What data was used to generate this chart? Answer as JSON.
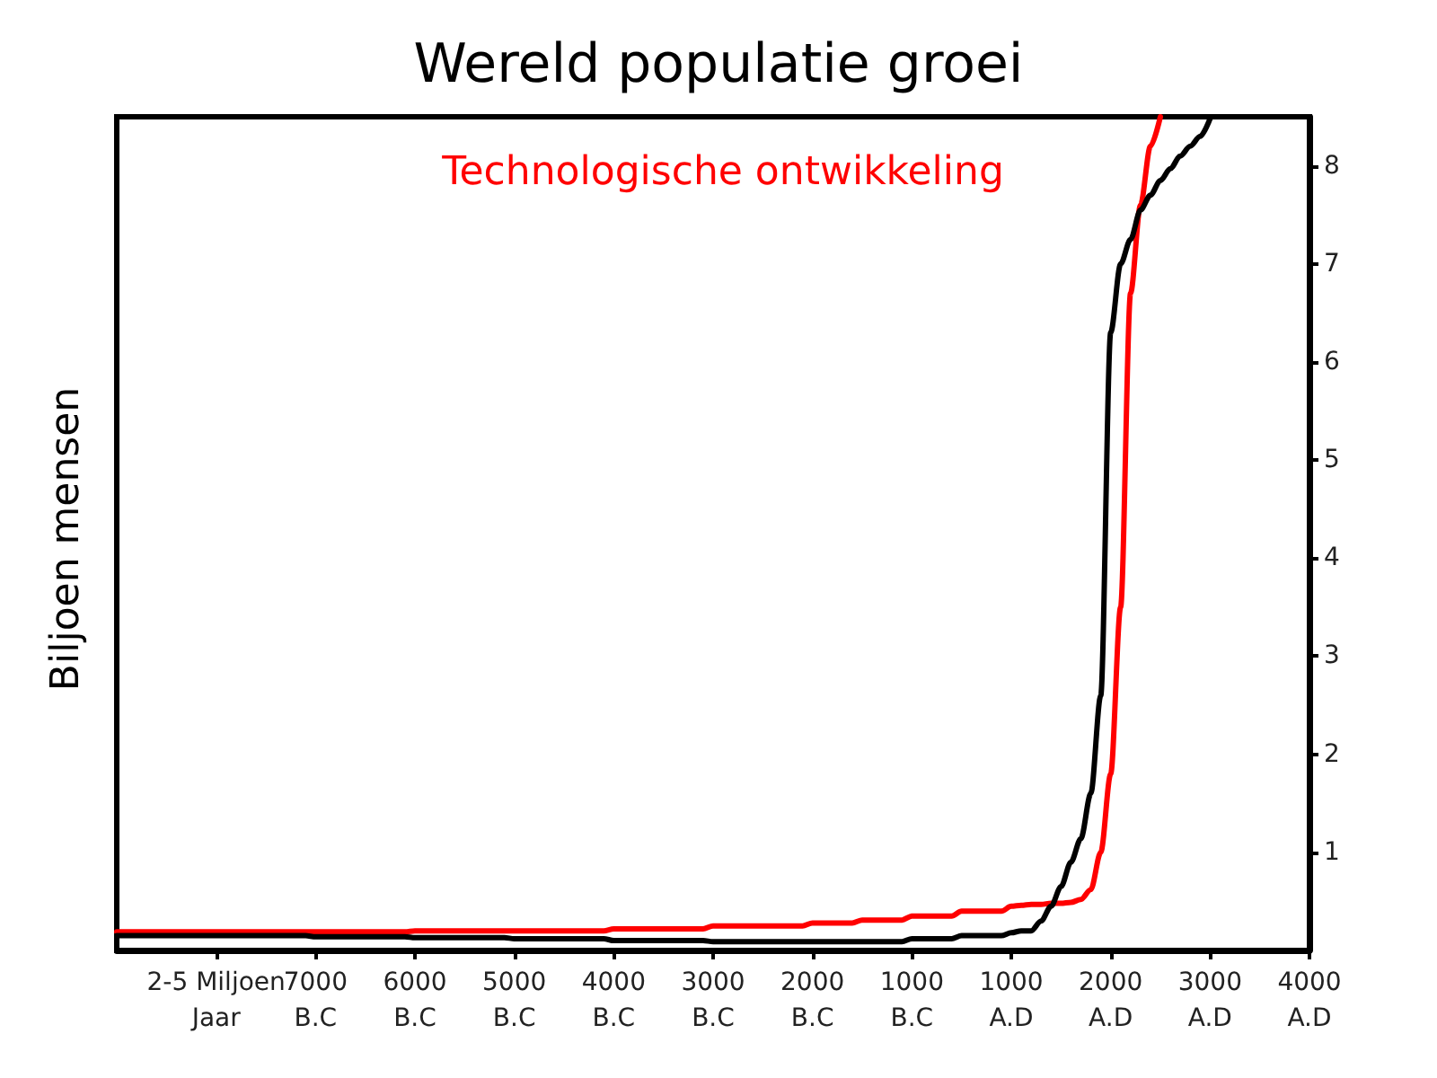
{
  "chart_data": {
    "type": "line",
    "title": "Wereld populatie groei",
    "ylabel": "Biljoen mensen",
    "ylim": [
      0,
      8.5
    ],
    "categories": [
      null,
      null,
      null,
      null,
      null,
      null,
      null,
      null,
      null,
      null,
      "2-5 Miljoen\nJaar",
      null,
      null,
      null,
      null,
      null,
      null,
      null,
      null,
      null,
      "7000\nB.C",
      null,
      null,
      null,
      null,
      null,
      null,
      null,
      null,
      null,
      "6000\nB.C",
      null,
      null,
      null,
      null,
      null,
      null,
      null,
      null,
      null,
      "5000\nB.C",
      null,
      null,
      null,
      null,
      null,
      null,
      null,
      null,
      null,
      "4000\nB.C",
      null,
      null,
      null,
      null,
      null,
      null,
      null,
      null,
      null,
      "3000\nB.C",
      null,
      null,
      null,
      null,
      null,
      null,
      null,
      null,
      null,
      "2000\nB.C",
      null,
      null,
      null,
      null,
      null,
      null,
      null,
      null,
      null,
      "1000\nB.C",
      null,
      null,
      null,
      null,
      null,
      null,
      null,
      null,
      null,
      "1000\nA.D",
      null,
      null,
      null,
      null,
      null,
      null,
      null,
      null,
      null,
      "2000\nA.D",
      null,
      null,
      null,
      null,
      null,
      null,
      null,
      null,
      null,
      "3000\nA.D",
      null,
      null,
      null,
      null,
      null,
      null,
      null,
      null,
      null,
      "4000\nA.D"
    ],
    "yticks": [
      1,
      2,
      3,
      4,
      5,
      6,
      7,
      8
    ],
    "grid": false,
    "legend": "top",
    "marker": "none",
    "line_style": "solid",
    "series": [
      {
        "name": "Technologische ontwikkeling",
        "color": "#ff0000",
        "values": [
          0.19,
          0.19,
          0.19,
          0.19,
          0.19,
          0.19,
          0.19,
          0.19,
          0.19,
          0.19,
          0.19,
          0.19,
          0.19,
          0.19,
          0.19,
          0.19,
          0.19,
          0.19,
          0.19,
          0.19,
          0.19,
          0.19,
          0.19,
          0.19,
          0.19,
          0.19,
          0.19,
          0.19,
          0.19,
          0.19,
          0.2,
          0.2,
          0.2,
          0.2,
          0.2,
          0.2,
          0.2,
          0.2,
          0.2,
          0.2,
          0.2,
          0.2,
          0.2,
          0.2,
          0.2,
          0.2,
          0.2,
          0.2,
          0.2,
          0.2,
          0.22,
          0.22,
          0.22,
          0.22,
          0.22,
          0.22,
          0.22,
          0.22,
          0.22,
          0.22,
          0.25,
          0.25,
          0.25,
          0.25,
          0.25,
          0.25,
          0.25,
          0.25,
          0.25,
          0.25,
          0.28,
          0.28,
          0.28,
          0.28,
          0.28,
          0.31,
          0.31,
          0.31,
          0.31,
          0.31,
          0.35,
          0.35,
          0.35,
          0.35,
          0.35,
          0.4,
          0.4,
          0.4,
          0.4,
          0.4,
          0.45,
          0.46,
          0.47,
          0.47,
          0.48,
          0.48,
          0.49,
          0.52,
          0.62,
          1.0,
          1.8,
          3.5,
          6.7,
          7.6,
          8.2,
          8.5,
          null,
          null,
          null,
          null,
          null,
          null,
          null,
          null,
          null,
          null,
          null,
          null,
          null,
          null,
          null
        ]
      },
      {
        "color": "#000000",
        "values": [
          0.15,
          0.15,
          0.15,
          0.15,
          0.15,
          0.15,
          0.15,
          0.15,
          0.15,
          0.15,
          0.15,
          0.15,
          0.15,
          0.15,
          0.15,
          0.15,
          0.15,
          0.15,
          0.15,
          0.15,
          0.14,
          0.14,
          0.14,
          0.14,
          0.14,
          0.14,
          0.14,
          0.14,
          0.14,
          0.14,
          0.13,
          0.13,
          0.13,
          0.13,
          0.13,
          0.13,
          0.13,
          0.13,
          0.13,
          0.13,
          0.12,
          0.12,
          0.12,
          0.12,
          0.12,
          0.12,
          0.12,
          0.12,
          0.12,
          0.12,
          0.1,
          0.1,
          0.1,
          0.1,
          0.1,
          0.1,
          0.1,
          0.1,
          0.1,
          0.1,
          0.09,
          0.09,
          0.09,
          0.09,
          0.09,
          0.09,
          0.09,
          0.09,
          0.09,
          0.09,
          0.09,
          0.09,
          0.09,
          0.09,
          0.09,
          0.09,
          0.09,
          0.09,
          0.09,
          0.09,
          0.12,
          0.12,
          0.12,
          0.12,
          0.12,
          0.15,
          0.15,
          0.15,
          0.15,
          0.15,
          0.18,
          0.2,
          0.2,
          0.3,
          0.45,
          0.65,
          0.9,
          1.14,
          1.6,
          2.6,
          6.3,
          7.0,
          7.25,
          7.55,
          7.7,
          7.85,
          7.97,
          8.1,
          8.2,
          8.3,
          8.48,
          null,
          null,
          null,
          null,
          null,
          null,
          null,
          null,
          null,
          null
        ]
      }
    ]
  }
}
